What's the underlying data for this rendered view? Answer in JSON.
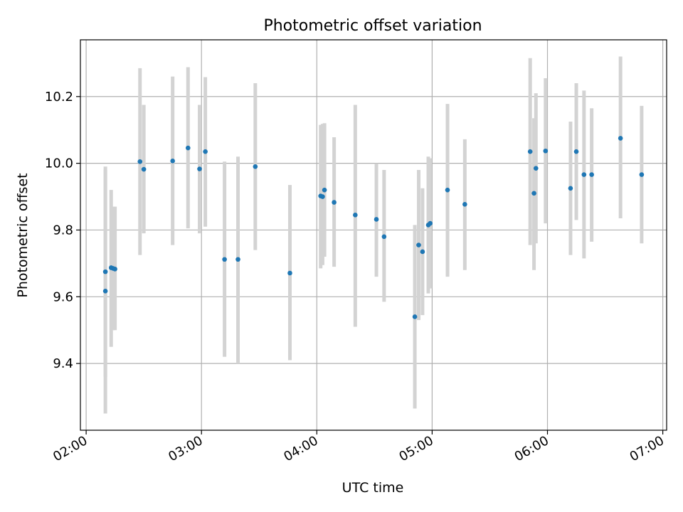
{
  "chart_data": {
    "type": "scatter",
    "title": "Photometric offset variation",
    "xlabel": "UTC time",
    "ylabel": "Photometric offset",
    "x_axis_kind": "time",
    "xlim": [
      "01:57",
      "07:02"
    ],
    "ylim": [
      9.2,
      10.37
    ],
    "grid": true,
    "x_ticks": [
      "02:00",
      "03:00",
      "04:00",
      "05:00",
      "06:00",
      "07:00"
    ],
    "y_ticks": [
      "9.4",
      "9.6",
      "9.8",
      "10.0",
      "10.2"
    ],
    "marker_color": "#1f77b4",
    "errorbar_color": "#d3d3d3",
    "points": [
      {
        "t": "02:10",
        "y": 9.675,
        "lo": 9.36,
        "hi": 9.99
      },
      {
        "t": "02:10",
        "y": 9.617,
        "lo": 9.25,
        "hi": 9.98
      },
      {
        "t": "02:13",
        "y": 9.687,
        "lo": 9.45,
        "hi": 9.92
      },
      {
        "t": "02:14",
        "y": 9.685,
        "lo": 9.5,
        "hi": 9.87
      },
      {
        "t": "02:15",
        "y": 9.683,
        "lo": 9.5,
        "hi": 9.87
      },
      {
        "t": "02:28",
        "y": 10.005,
        "lo": 9.725,
        "hi": 10.285
      },
      {
        "t": "02:30",
        "y": 9.982,
        "lo": 9.79,
        "hi": 10.175
      },
      {
        "t": "02:45",
        "y": 10.007,
        "lo": 9.755,
        "hi": 10.26
      },
      {
        "t": "02:53",
        "y": 10.046,
        "lo": 9.805,
        "hi": 10.288
      },
      {
        "t": "02:59",
        "y": 9.983,
        "lo": 9.79,
        "hi": 10.175
      },
      {
        "t": "03:02",
        "y": 10.035,
        "lo": 9.81,
        "hi": 10.258
      },
      {
        "t": "03:12",
        "y": 9.712,
        "lo": 9.42,
        "hi": 10.005
      },
      {
        "t": "03:19",
        "y": 9.712,
        "lo": 9.4,
        "hi": 10.02
      },
      {
        "t": "03:28",
        "y": 9.99,
        "lo": 9.74,
        "hi": 10.24
      },
      {
        "t": "03:46",
        "y": 9.671,
        "lo": 9.41,
        "hi": 9.935
      },
      {
        "t": "04:02",
        "y": 9.902,
        "lo": 9.685,
        "hi": 10.115
      },
      {
        "t": "04:03",
        "y": 9.9,
        "lo": 9.695,
        "hi": 10.118
      },
      {
        "t": "04:04",
        "y": 9.92,
        "lo": 9.72,
        "hi": 10.12
      },
      {
        "t": "04:09",
        "y": 9.883,
        "lo": 9.69,
        "hi": 10.078
      },
      {
        "t": "04:20",
        "y": 9.845,
        "lo": 9.51,
        "hi": 10.175
      },
      {
        "t": "04:31",
        "y": 9.832,
        "lo": 9.66,
        "hi": 10.0
      },
      {
        "t": "04:35",
        "y": 9.78,
        "lo": 9.585,
        "hi": 9.98
      },
      {
        "t": "04:51",
        "y": 9.54,
        "lo": 9.265,
        "hi": 9.815
      },
      {
        "t": "04:53",
        "y": 9.755,
        "lo": 9.53,
        "hi": 9.98
      },
      {
        "t": "04:55",
        "y": 9.735,
        "lo": 9.545,
        "hi": 9.925
      },
      {
        "t": "04:58",
        "y": 9.815,
        "lo": 9.61,
        "hi": 10.02
      },
      {
        "t": "04:59",
        "y": 9.82,
        "lo": 9.625,
        "hi": 10.015
      },
      {
        "t": "05:08",
        "y": 9.92,
        "lo": 9.66,
        "hi": 10.178
      },
      {
        "t": "05:17",
        "y": 9.877,
        "lo": 9.68,
        "hi": 10.072
      },
      {
        "t": "05:51",
        "y": 10.035,
        "lo": 9.755,
        "hi": 10.315
      },
      {
        "t": "05:53",
        "y": 9.91,
        "lo": 9.68,
        "hi": 10.135
      },
      {
        "t": "05:54",
        "y": 9.985,
        "lo": 9.76,
        "hi": 10.21
      },
      {
        "t": "05:59",
        "y": 10.037,
        "lo": 9.82,
        "hi": 10.255
      },
      {
        "t": "06:12",
        "y": 9.925,
        "lo": 9.725,
        "hi": 10.125
      },
      {
        "t": "06:15",
        "y": 10.035,
        "lo": 9.83,
        "hi": 10.24
      },
      {
        "t": "06:19",
        "y": 9.966,
        "lo": 9.715,
        "hi": 10.218
      },
      {
        "t": "06:23",
        "y": 9.966,
        "lo": 9.765,
        "hi": 10.165
      },
      {
        "t": "06:38",
        "y": 10.075,
        "lo": 9.835,
        "hi": 10.32
      },
      {
        "t": "06:49",
        "y": 9.966,
        "lo": 9.76,
        "hi": 10.172
      }
    ]
  }
}
